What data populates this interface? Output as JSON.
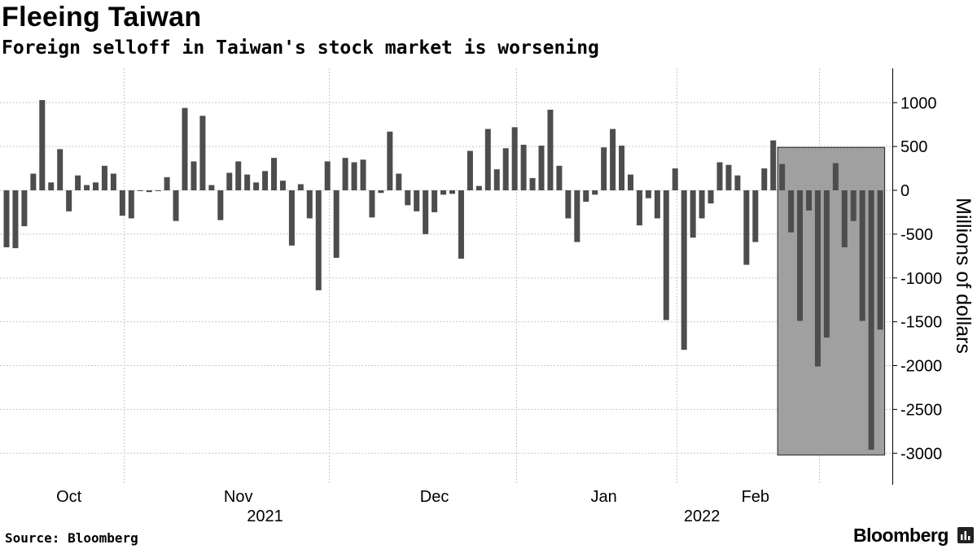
{
  "title": "Fleeing Taiwan",
  "subtitle": "Foreign selloff in Taiwan's stock market is worsening",
  "source": "Source: Bloomberg",
  "brand": "Bloomberg",
  "colors": {
    "bar": "#4d4d4d",
    "highlight_fill": "#a0a0a0",
    "grid": "#c8c8c8"
  },
  "chart_data": {
    "type": "bar",
    "title": "Fleeing Taiwan",
    "subtitle": "Foreign selloff in Taiwan's stock market is worsening",
    "ylabel": "Millions of dollars",
    "xlabel": "",
    "ylim": [
      -3300,
      1400
    ],
    "yticks": [
      1000,
      500,
      0,
      -500,
      -1000,
      -1500,
      -2000,
      -2500,
      -3000
    ],
    "grid": true,
    "x_month_labels": [
      {
        "label": "Oct",
        "index": 7
      },
      {
        "label": "Nov",
        "index": 26
      },
      {
        "label": "Dec",
        "index": 48
      },
      {
        "label": "Jan",
        "index": 67
      },
      {
        "label": "Feb",
        "index": 84
      }
    ],
    "x_year_labels": [
      {
        "label": "2021",
        "index": 29
      },
      {
        "label": "2022",
        "index": 78
      }
    ],
    "x_gridlines_after_index": [
      13,
      36,
      57,
      75,
      91
    ],
    "highlight_range": {
      "start_index": 87,
      "end_index": 98,
      "y_top": 490,
      "y_bottom": -3020
    },
    "values": [
      -650,
      -660,
      -410,
      190,
      1030,
      90,
      470,
      -240,
      170,
      60,
      90,
      280,
      190,
      -290,
      -320,
      0,
      -20,
      0,
      150,
      -350,
      940,
      330,
      850,
      60,
      -340,
      200,
      330,
      180,
      90,
      220,
      370,
      110,
      -630,
      70,
      -320,
      -1140,
      330,
      -770,
      370,
      320,
      350,
      -310,
      -30,
      670,
      190,
      -170,
      -240,
      -500,
      -250,
      -50,
      -40,
      -780,
      450,
      50,
      700,
      240,
      480,
      720,
      520,
      140,
      510,
      920,
      280,
      -320,
      -590,
      -130,
      -50,
      490,
      700,
      510,
      180,
      -400,
      -90,
      -320,
      -1480,
      250,
      -1820,
      -540,
      -320,
      -150,
      320,
      290,
      170,
      -850,
      -590,
      250,
      570,
      300,
      -480,
      -1490,
      -230,
      -2010,
      -1680,
      310,
      -650,
      -350,
      -1490,
      -2960,
      -1590
    ]
  }
}
